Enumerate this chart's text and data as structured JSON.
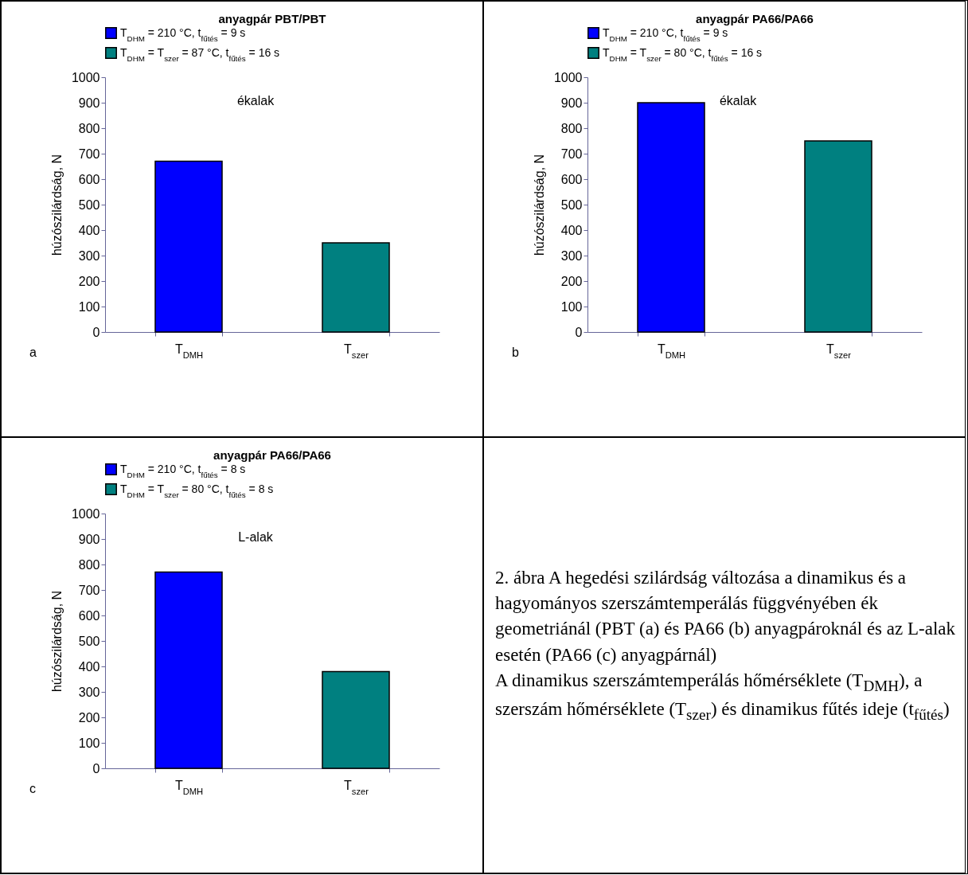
{
  "chart_data": [
    {
      "type": "bar",
      "title": "anyagpár PBT/PBT",
      "ylabel": "húzószilárdság, N",
      "categories": [
        "T$_{DMH}$",
        "T$_{szer}$"
      ],
      "series": [
        {
          "name": "T$_{DHM}$ = 210 °C, t$_{fűtés}$ = 9 s",
          "color": "#0000ff",
          "values": [
            670,
            null
          ]
        },
        {
          "name": "T$_{DHM}$ = T$_{szer}$ = 87 °C, t$_{fűtés}$ = 16 s",
          "color": "#008080",
          "values": [
            null,
            350
          ]
        }
      ],
      "ylim": [
        0,
        1000
      ],
      "yticks": [
        0,
        100,
        200,
        300,
        400,
        500,
        600,
        700,
        800,
        900,
        1000
      ],
      "legend": "top left",
      "annotations": [
        "a",
        "ékalak"
      ]
    },
    {
      "type": "bar",
      "title": "anyagpár PA66/PA66",
      "ylabel": "húzószilárdság, N",
      "categories": [
        "T$_{DMH}$",
        "T$_{szer}$"
      ],
      "series": [
        {
          "name": "T$_{DHM}$ = 210 °C, t$_{fűtés}$ = 9 s",
          "color": "#0000ff",
          "values": [
            900,
            null
          ]
        },
        {
          "name": "T$_{DHM}$ = T$_{szer}$ = 80 °C, t$_{fűtés}$ = 16 s",
          "color": "#008080",
          "values": [
            null,
            750
          ]
        }
      ],
      "ylim": [
        0,
        1000
      ],
      "yticks": [
        0,
        100,
        200,
        300,
        400,
        500,
        600,
        700,
        800,
        900,
        1000
      ],
      "legend": "top left",
      "annotations": [
        "b",
        "ékalak"
      ]
    },
    {
      "type": "bar",
      "title": "anyagpár PA66/PA66",
      "ylabel": "húzószilárdság, N",
      "categories": [
        "T$_{DMH}$",
        "T$_{szer}$"
      ],
      "series": [
        {
          "name": "T$_{DHM}$ = 210 °C, t$_{fűtés}$ = 8 s",
          "color": "#0000ff",
          "values": [
            770,
            null
          ]
        },
        {
          "name": "T$_{DHM}$ = T$_{szer}$ = 80 °C, t$_{fűtés}$ = 8 s",
          "color": "#008080",
          "values": [
            null,
            380
          ]
        }
      ],
      "ylim": [
        0,
        1000
      ],
      "yticks": [
        0,
        100,
        200,
        300,
        400,
        500,
        600,
        700,
        800,
        900,
        1000
      ],
      "legend": "top left",
      "annotations": [
        "c",
        "L-alak"
      ]
    },
    {
      "type": "other",
      "annotations": [
        "2. ábra A hegedési szilárdság változása a dinamikus és a hagyományos szerszámtemperálás függvényében ék geometriánál (PBT (a) és PA66 (b) anyagpároknál és az L-alak esetén (PA66 (c) anyagpárnál)",
        "A dinamikus szerszámtemperálás hőmérséklete (T$_{DMH}$), a szerszám hőmérséklete (T$_{szer}$) és dinamikus fűtés ideje (t$_{fűtés}$)"
      ]
    }
  ]
}
